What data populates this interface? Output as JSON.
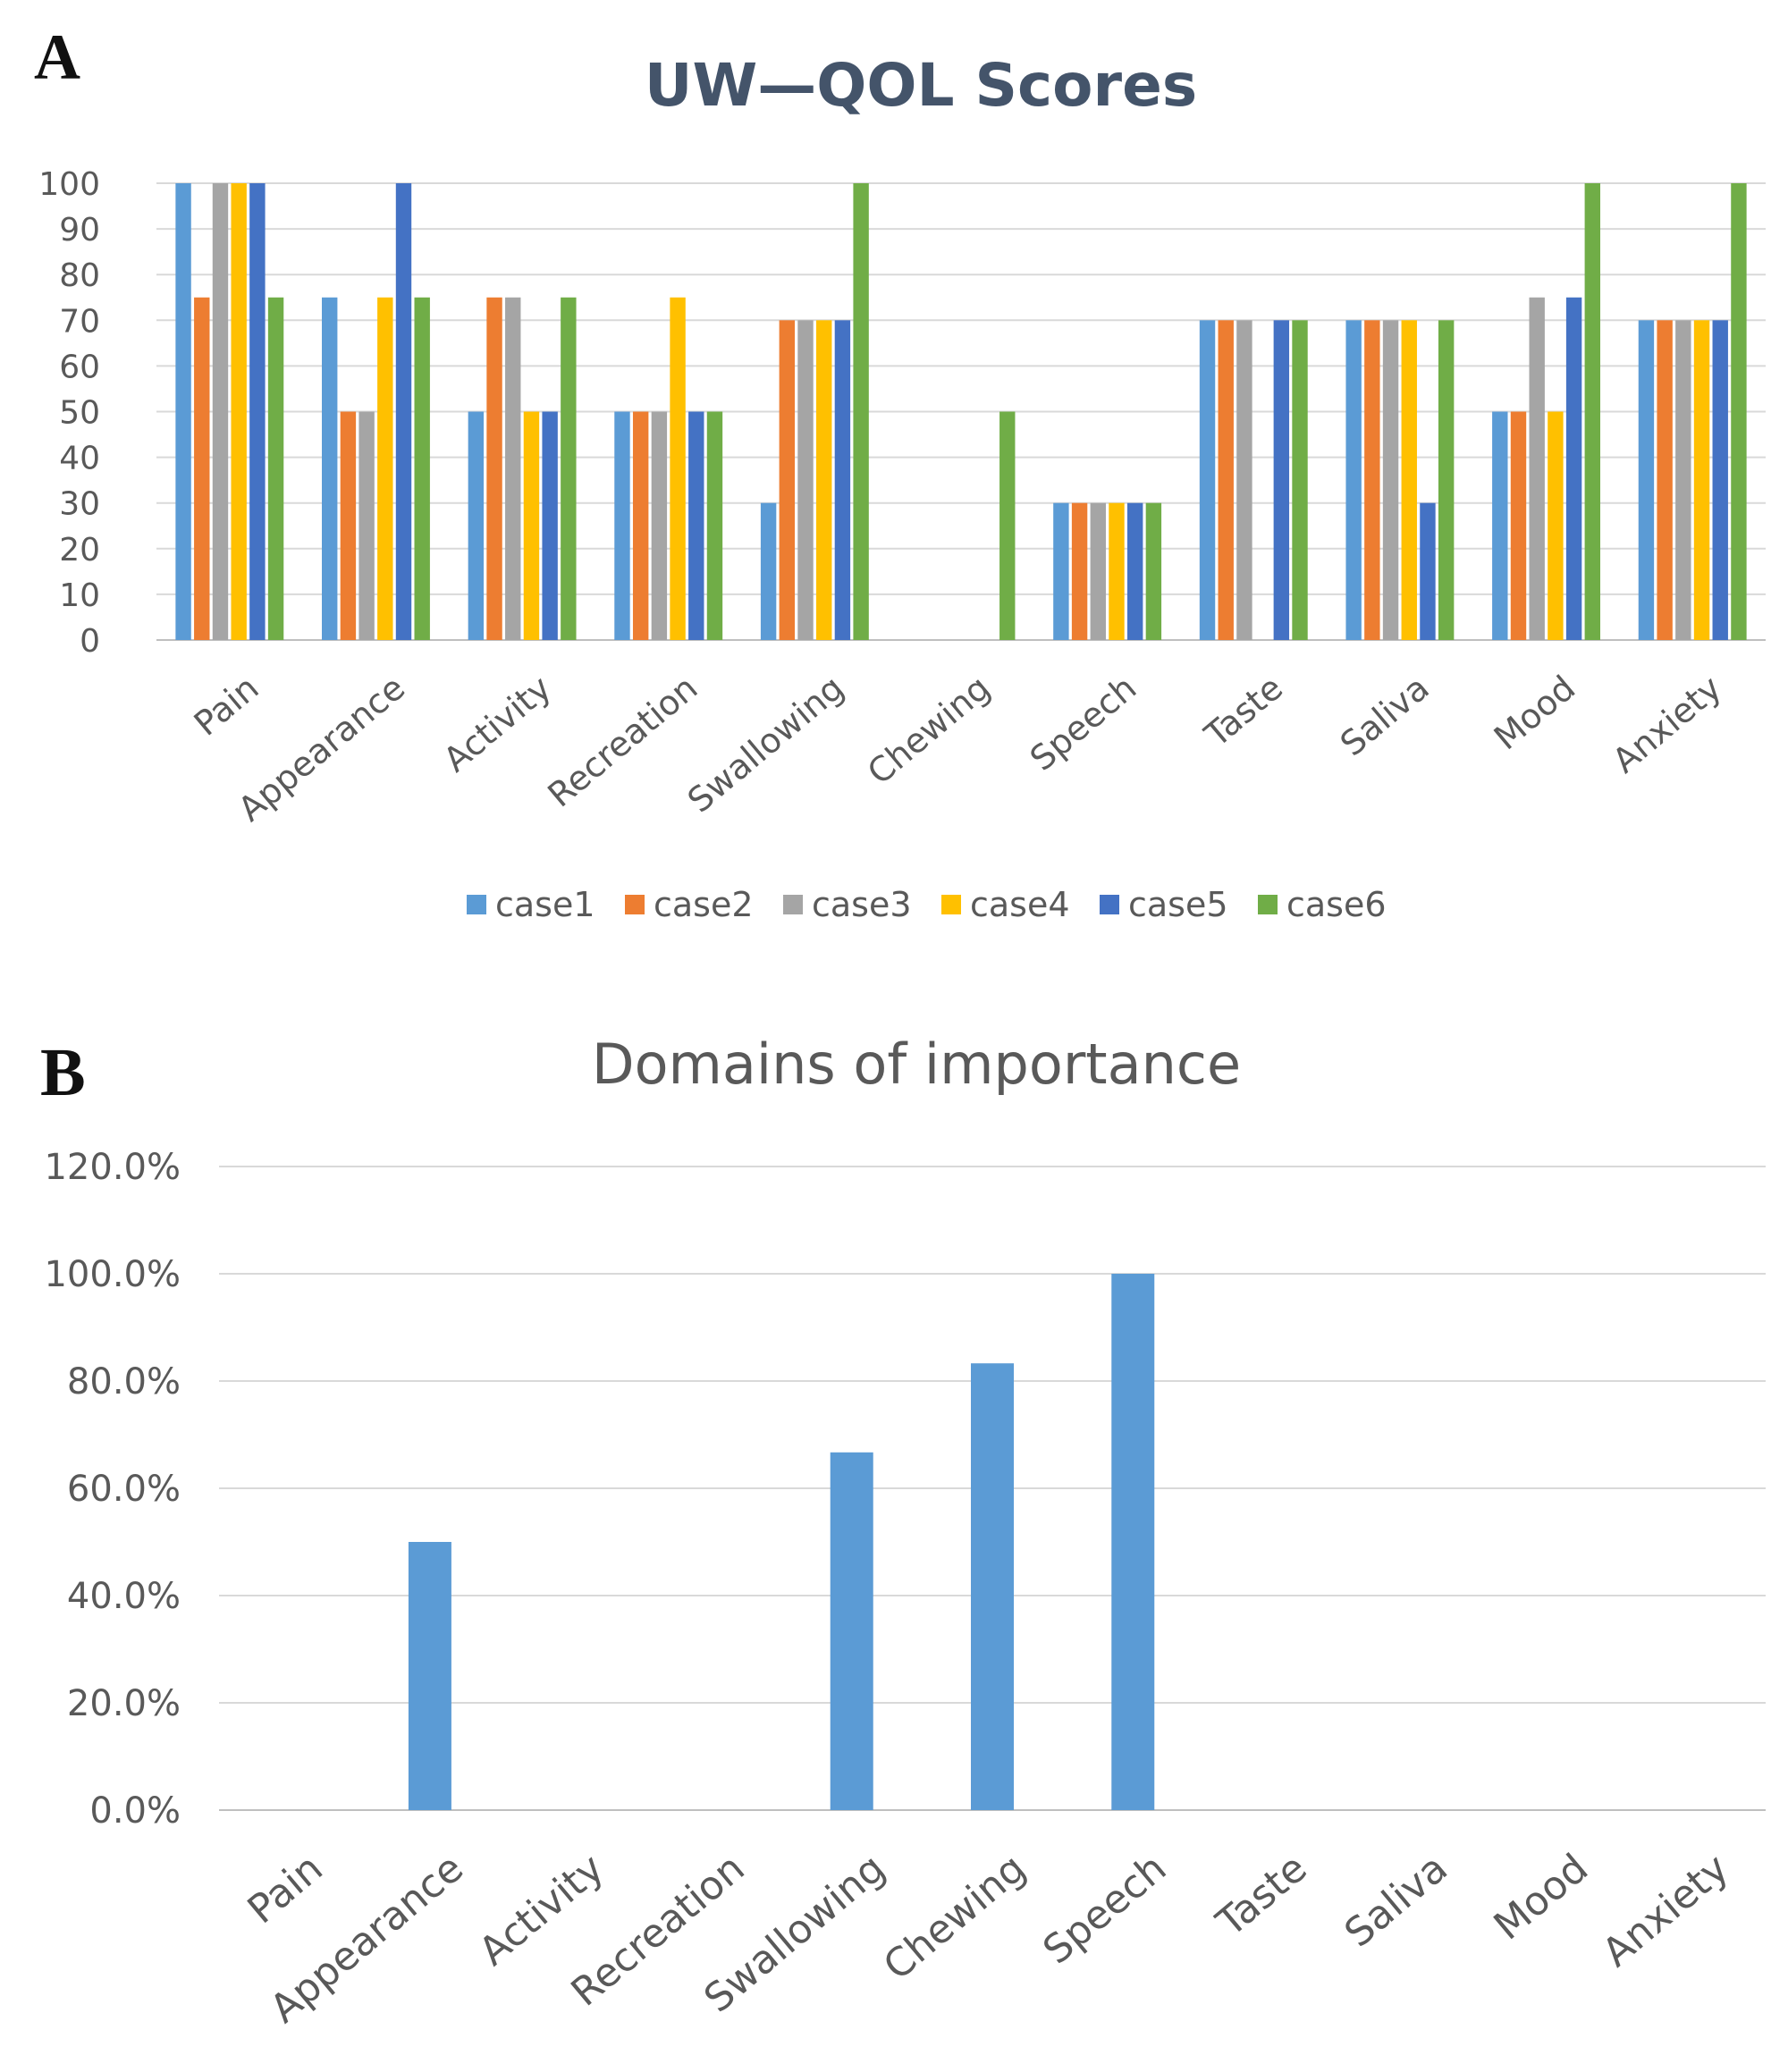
{
  "chart_data": [
    {
      "panel_label": "A",
      "type": "bar",
      "title": "UW—QOL Scores",
      "categories": [
        "Pain",
        "Appearance",
        "Activity",
        "Recreation",
        "Swallowing",
        "Chewing",
        "Speech",
        "Taste",
        "Saliva",
        "Mood",
        "Anxiety"
      ],
      "series": [
        {
          "name": "case1",
          "color": "#5b9bd5",
          "values": [
            100,
            75,
            50,
            50,
            30,
            0,
            30,
            70,
            70,
            50,
            70
          ]
        },
        {
          "name": "case2",
          "color": "#ed7d31",
          "values": [
            75,
            50,
            75,
            50,
            70,
            0,
            30,
            70,
            70,
            50,
            70
          ]
        },
        {
          "name": "case3",
          "color": "#a5a5a5",
          "values": [
            100,
            50,
            75,
            50,
            70,
            0,
            30,
            70,
            70,
            75,
            70
          ]
        },
        {
          "name": "case4",
          "color": "#ffc000",
          "values": [
            100,
            75,
            50,
            75,
            70,
            0,
            30,
            0,
            70,
            50,
            70
          ]
        },
        {
          "name": "case5",
          "color": "#4472c4",
          "values": [
            100,
            100,
            50,
            50,
            70,
            0,
            30,
            70,
            30,
            75,
            70
          ]
        },
        {
          "name": "case6",
          "color": "#70ad47",
          "values": [
            75,
            75,
            75,
            50,
            100,
            50,
            30,
            70,
            70,
            100,
            100
          ]
        }
      ],
      "ylim": [
        0,
        100
      ],
      "yticks": [
        "0",
        "10",
        "20",
        "30",
        "40",
        "50",
        "60",
        "70",
        "80",
        "90",
        "100"
      ],
      "grid": true,
      "legend": "bottom"
    },
    {
      "panel_label": "B",
      "type": "bar",
      "title": "Domains of importance",
      "categories": [
        "Pain",
        "Appearance",
        "Activity",
        "Recreation",
        "Swallowing",
        "Chewing",
        "Speech",
        "Taste",
        "Saliva",
        "Mood",
        "Anxiety"
      ],
      "series": [
        {
          "color": "#5b9bd5",
          "values": [
            0,
            50,
            0,
            0,
            66.7,
            83.3,
            100,
            0,
            0,
            0,
            0
          ]
        }
      ],
      "ylim": [
        0,
        120
      ],
      "yticks": [
        "0.0%",
        "20.0%",
        "40.0%",
        "60.0%",
        "80.0%",
        "100.0%",
        "120.0%"
      ],
      "grid": true
    }
  ]
}
